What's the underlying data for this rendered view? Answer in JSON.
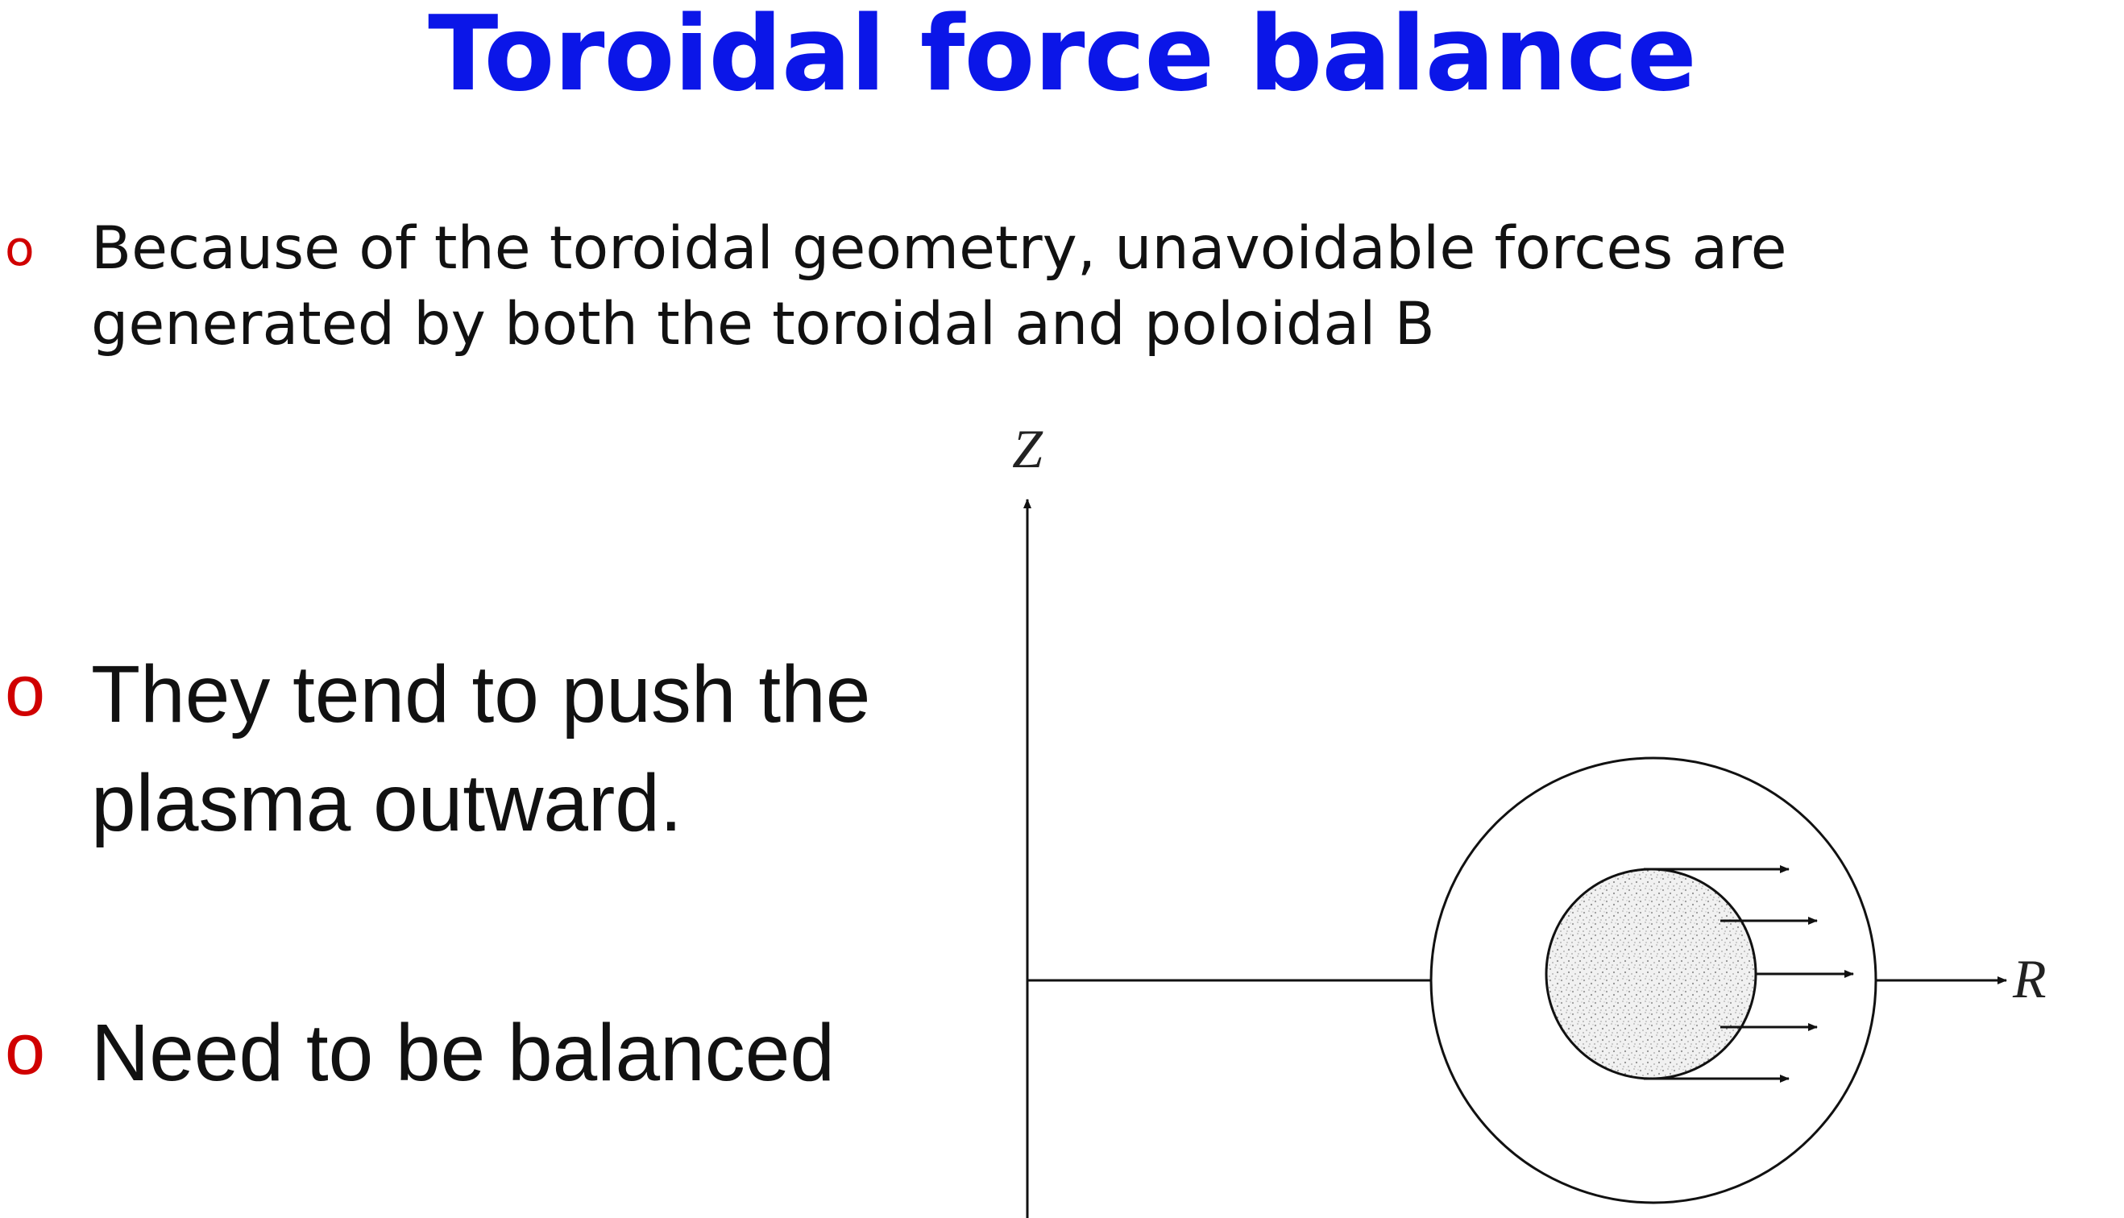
{
  "slide": {
    "title": "Toroidal force balance",
    "title_color": "#0b16e8",
    "bullet_marker": "o",
    "bullet_marker_color": "#d00000",
    "bullets": [
      {
        "text": "Because of the toroidal geometry, unavoidable forces are generated by both the toroidal and poloidal B"
      },
      {
        "text": "They tend to push the plasma outward."
      },
      {
        "text": "Need to be balanced"
      }
    ]
  },
  "diagram": {
    "axis_z_label": "Z",
    "axis_r_label": "R",
    "plasma_fill": "speckled-gray",
    "force_arrow_count": 5,
    "force_direction": "outward (+R)"
  }
}
